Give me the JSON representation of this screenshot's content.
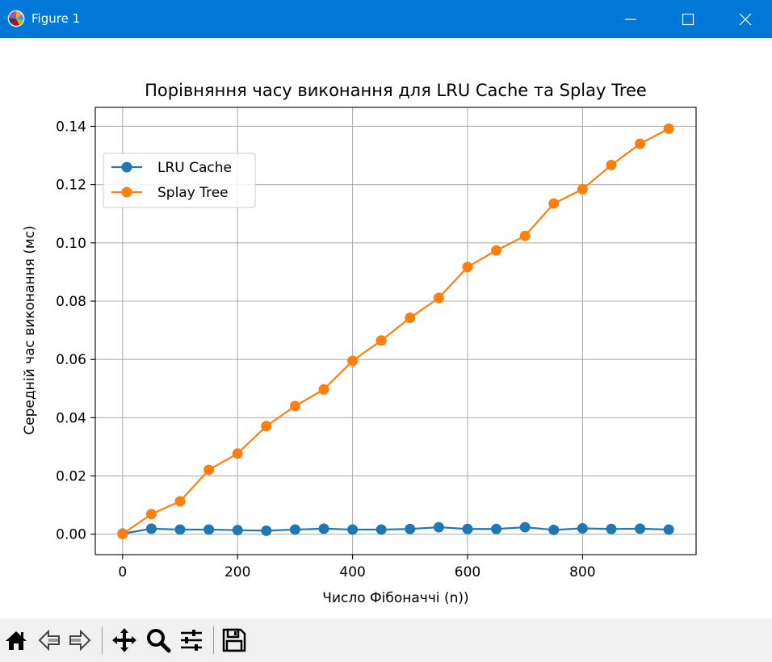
{
  "window": {
    "title": "Figure 1"
  },
  "toolbar": {
    "tools": [
      "home-icon",
      "back-arrow-icon",
      "forward-arrow-icon",
      "pan-icon",
      "zoom-icon",
      "configure-subplots-icon",
      "save-icon"
    ]
  },
  "chart_data": {
    "type": "line",
    "title": "Порівняння часу виконання для LRU Cache та Splay Tree",
    "xlabel": "Число Фібоначчі (n))",
    "ylabel": "Середній час виконання (мс)",
    "xlim": [
      -47.5,
      997.5
    ],
    "ylim": [
      -0.007,
      0.1465
    ],
    "xticks": [
      0,
      200,
      400,
      600,
      800
    ],
    "xtick_labels": [
      "0",
      "200",
      "400",
      "600",
      "800"
    ],
    "yticks": [
      0.0,
      0.02,
      0.04,
      0.06,
      0.08,
      0.1,
      0.12,
      0.14
    ],
    "ytick_labels": [
      "0.00",
      "0.02",
      "0.04",
      "0.06",
      "0.08",
      "0.10",
      "0.12",
      "0.14"
    ],
    "grid": true,
    "legend_position": "upper-left",
    "x": [
      0,
      50,
      100,
      150,
      200,
      250,
      300,
      350,
      400,
      450,
      500,
      550,
      600,
      650,
      700,
      750,
      800,
      850,
      900,
      950
    ],
    "series": [
      {
        "name": "LRU Cache",
        "color": "#1f77b4",
        "marker": "circle",
        "values": [
          0.0002,
          0.0019,
          0.0016,
          0.0016,
          0.0014,
          0.0012,
          0.0016,
          0.0019,
          0.0016,
          0.0016,
          0.0018,
          0.0024,
          0.0018,
          0.0018,
          0.0024,
          0.0015,
          0.002,
          0.0018,
          0.0019,
          0.0016
        ]
      },
      {
        "name": "Splay Tree",
        "color": "#ff7f0e",
        "marker": "circle",
        "values": [
          0.0001,
          0.0069,
          0.0113,
          0.0221,
          0.0277,
          0.0371,
          0.044,
          0.0497,
          0.0595,
          0.0665,
          0.0743,
          0.0811,
          0.0917,
          0.0974,
          0.1024,
          0.1135,
          0.1184,
          0.1267,
          0.134,
          0.1392
        ]
      }
    ]
  }
}
